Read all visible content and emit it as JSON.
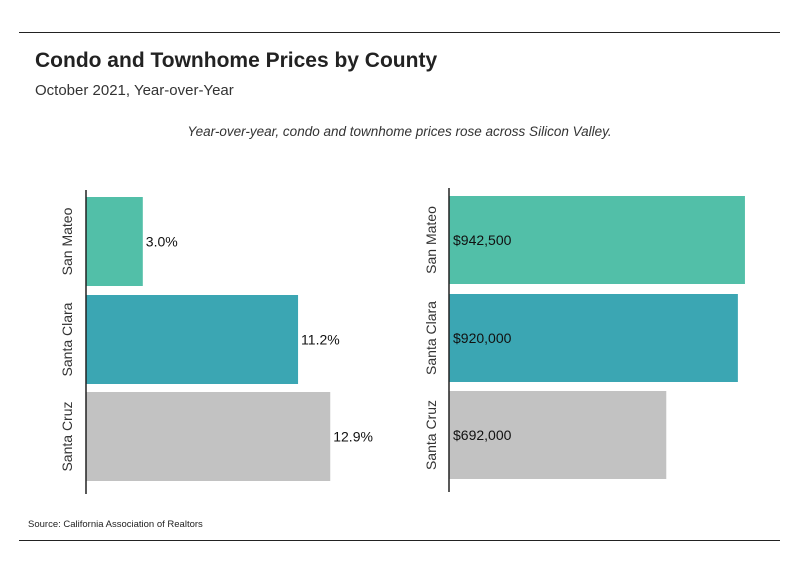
{
  "title": "Condo and Townhome Prices by County",
  "subtitle": "October 2021, Year-over-Year",
  "annotation": "Year-over-year, condo and townhome prices rose across Silicon Valley.",
  "source": "Source:  California Association of Realtors",
  "colors": {
    "San Mateo": "#52bfa8",
    "Santa Clara": "#3ba6b3",
    "Santa Cruz": "#c2c2c2"
  },
  "chart_data": [
    {
      "type": "bar",
      "orientation": "horizontal",
      "categories": [
        "San Mateo",
        "Santa Clara",
        "Santa Cruz"
      ],
      "values": [
        3.0,
        11.2,
        12.9
      ],
      "value_labels": [
        "3.0%",
        "11.2%",
        "12.9%"
      ],
      "xlim": [
        0,
        15
      ],
      "label_position": "outside",
      "grid": false
    },
    {
      "type": "bar",
      "orientation": "horizontal",
      "categories": [
        "San Mateo",
        "Santa Clara",
        "Santa Cruz"
      ],
      "values": [
        942500,
        920000,
        692000
      ],
      "value_labels": [
        "$942,500",
        "$920,000",
        "$692,000"
      ],
      "xlim": [
        0,
        1000000
      ],
      "label_position": "inside",
      "grid": false
    }
  ]
}
